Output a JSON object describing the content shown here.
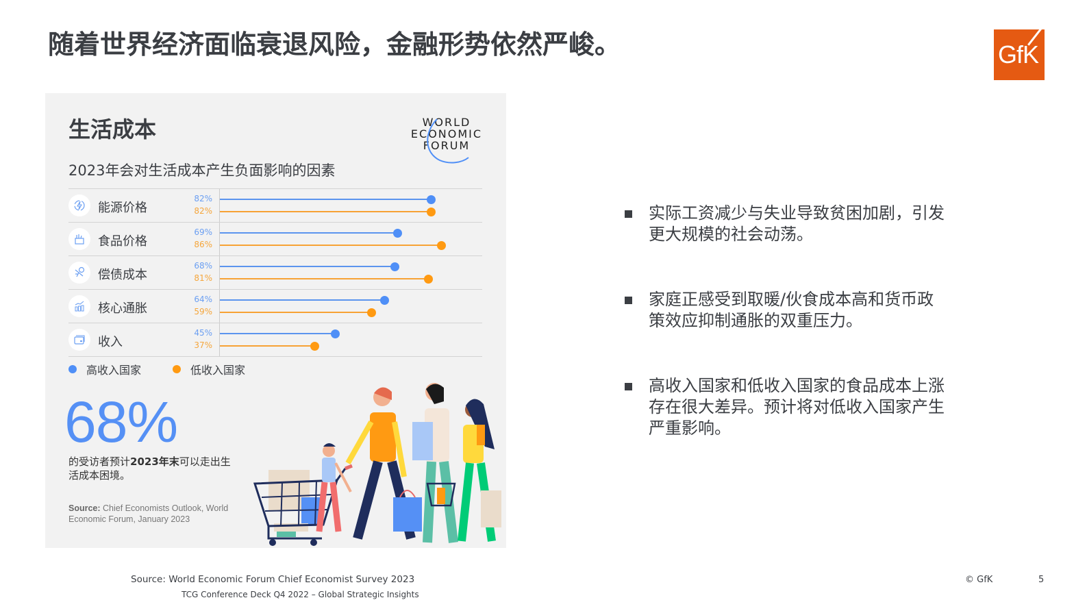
{
  "slide": {
    "title": "随着世界经济面临衰退风险，金融形势依然严峻。",
    "logo": {
      "text": "GfK",
      "color": "#e55a12"
    }
  },
  "panel": {
    "title": "生活成本",
    "wef_logo": [
      "WORLD",
      "ECONOMIC",
      "FORUM"
    ],
    "subtitle": "2023年会对生活成本产生负面影响的因素",
    "legend": [
      {
        "label": "高收入国家",
        "color": "#4f8ff7"
      },
      {
        "label": "低收入国家",
        "color": "#ff9a12"
      }
    ],
    "big_stat": "68%",
    "stat_desc_pre": "的受访者预计",
    "stat_desc_bold": "2023年末",
    "stat_desc_post": "可以走出生活成本困境。",
    "source_label": "Source:",
    "source_text": " Chief Economists Outlook, World Economic Forum, January 2023"
  },
  "chart_data": {
    "type": "bar",
    "subtype": "lollipop-horizontal",
    "title": "2023年会对生活成本产生负面影响的因素",
    "categories": [
      "能源价格",
      "食品价格",
      "偿债成本",
      "核心通胀",
      "收入"
    ],
    "category_icons": [
      "energy-cycle-icon",
      "grocery-bag-icon",
      "debt-burden-icon",
      "inflation-chart-icon",
      "wallet-card-icon"
    ],
    "series": [
      {
        "name": "高收入国家",
        "color": "#4f8ff7",
        "values": [
          82,
          69,
          68,
          64,
          45
        ],
        "labels": [
          "82%",
          "69%",
          "68%",
          "64%",
          "45%"
        ]
      },
      {
        "name": "低收入国家",
        "color": "#ff9a12",
        "values": [
          82,
          86,
          81,
          59,
          37
        ],
        "labels": [
          "82%",
          "86%",
          "81%",
          "59%",
          "37%"
        ]
      }
    ],
    "xlabel": "",
    "ylabel": "",
    "xlim": [
      0,
      100
    ],
    "grid": false,
    "legend_position": "bottom"
  },
  "bullets": [
    "实际工资减少与失业导致贫困加剧，引发更大规模的社会动荡。",
    "家庭正感受到取暖/伙食成本高和货币政策效应抑制通胀的双重压力。",
    "高收入国家和低收入国家的食品成本上涨存在很大差异。预计将对低收入国家产生严重影响。"
  ],
  "footer": {
    "source": "Source: World Economic Forum Chief Economist Survey 2023",
    "deck": "TCG Conference Deck Q4 2022 – Global Strategic Insights",
    "copyright": "© GfK",
    "page_number": "5"
  }
}
